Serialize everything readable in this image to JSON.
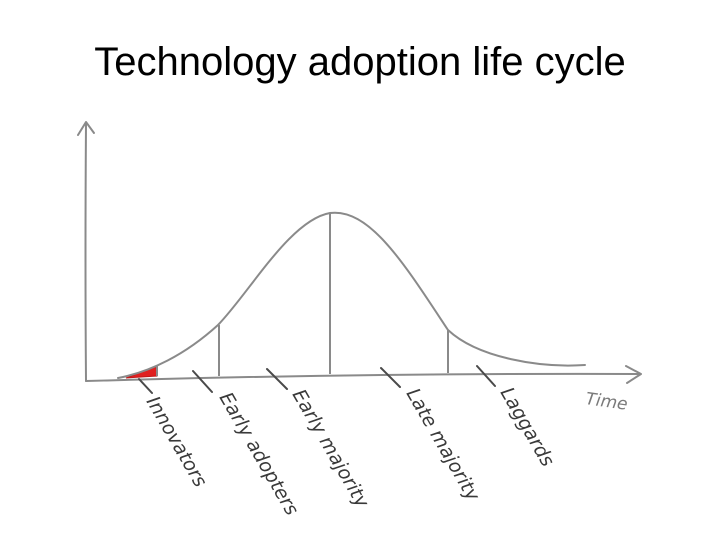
{
  "title": "Technology adoption life cycle",
  "axis": {
    "x_label": "Time",
    "color": "#7f7f7f"
  },
  "curve": {
    "color": "#8a8a8a",
    "highlight_color": "#e02020"
  },
  "segments": [
    {
      "key": "innovators",
      "label": "Innovators"
    },
    {
      "key": "early-adopters",
      "label": "Early adopters"
    },
    {
      "key": "early-majority",
      "label": "Early majority"
    },
    {
      "key": "late-majority",
      "label": "Late majority"
    },
    {
      "key": "laggards",
      "label": "Laggards"
    }
  ],
  "label_color": "#3a3a3a"
}
